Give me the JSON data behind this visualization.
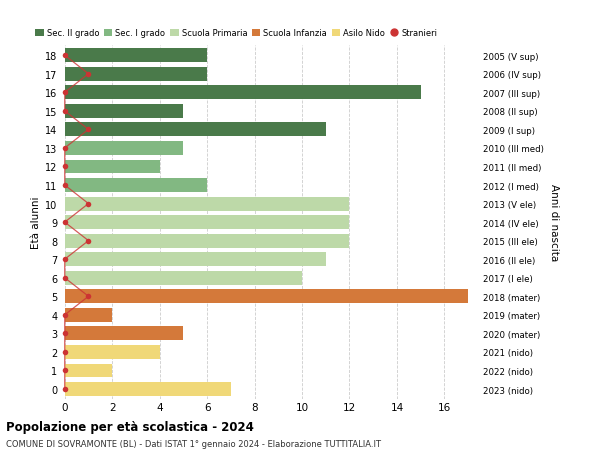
{
  "ages": [
    18,
    17,
    16,
    15,
    14,
    13,
    12,
    11,
    10,
    9,
    8,
    7,
    6,
    5,
    4,
    3,
    2,
    1,
    0
  ],
  "years": [
    "2005 (V sup)",
    "2006 (IV sup)",
    "2007 (III sup)",
    "2008 (II sup)",
    "2009 (I sup)",
    "2010 (III med)",
    "2011 (II med)",
    "2012 (I med)",
    "2013 (V ele)",
    "2014 (IV ele)",
    "2015 (III ele)",
    "2016 (II ele)",
    "2017 (I ele)",
    "2018 (mater)",
    "2019 (mater)",
    "2020 (mater)",
    "2021 (nido)",
    "2022 (nido)",
    "2023 (nido)"
  ],
  "bar_values": [
    6,
    6,
    15,
    5,
    11,
    5,
    4,
    6,
    12,
    12,
    12,
    11,
    10,
    17,
    2,
    5,
    4,
    2,
    7
  ],
  "bar_colors": [
    "#4a7a4a",
    "#4a7a4a",
    "#4a7a4a",
    "#4a7a4a",
    "#4a7a4a",
    "#82b882",
    "#82b882",
    "#82b882",
    "#bdd9a8",
    "#bdd9a8",
    "#bdd9a8",
    "#bdd9a8",
    "#bdd9a8",
    "#d4793a",
    "#d4793a",
    "#d4793a",
    "#f0d878",
    "#f0d878",
    "#f0d878"
  ],
  "stranieri_values": [
    0,
    1,
    0,
    0,
    1,
    0,
    0,
    0,
    1,
    0,
    1,
    0,
    0,
    1,
    0,
    0,
    0,
    0,
    0
  ],
  "stranieri_color": "#cc3333",
  "legend_labels": [
    "Sec. II grado",
    "Sec. I grado",
    "Scuola Primaria",
    "Scuola Infanzia",
    "Asilo Nido",
    "Stranieri"
  ],
  "legend_colors": [
    "#4a7a4a",
    "#82b882",
    "#bdd9a8",
    "#d4793a",
    "#f0d878",
    "#cc3333"
  ],
  "title": "Popolazione per età scolastica - 2024",
  "subtitle": "COMUNE DI SOVRAMONTE (BL) - Dati ISTAT 1° gennaio 2024 - Elaborazione TUTTITALIA.IT",
  "ylabel_left": "Età alunni",
  "ylabel_right": "Anni di nascita",
  "xticks": [
    0,
    2,
    4,
    6,
    8,
    10,
    12,
    14,
    16
  ],
  "xlim": [
    -0.2,
    17.5
  ],
  "ylim": [
    -0.55,
    18.55
  ],
  "bg_color": "#ffffff",
  "grid_color": "#cccccc",
  "bar_height": 0.75
}
